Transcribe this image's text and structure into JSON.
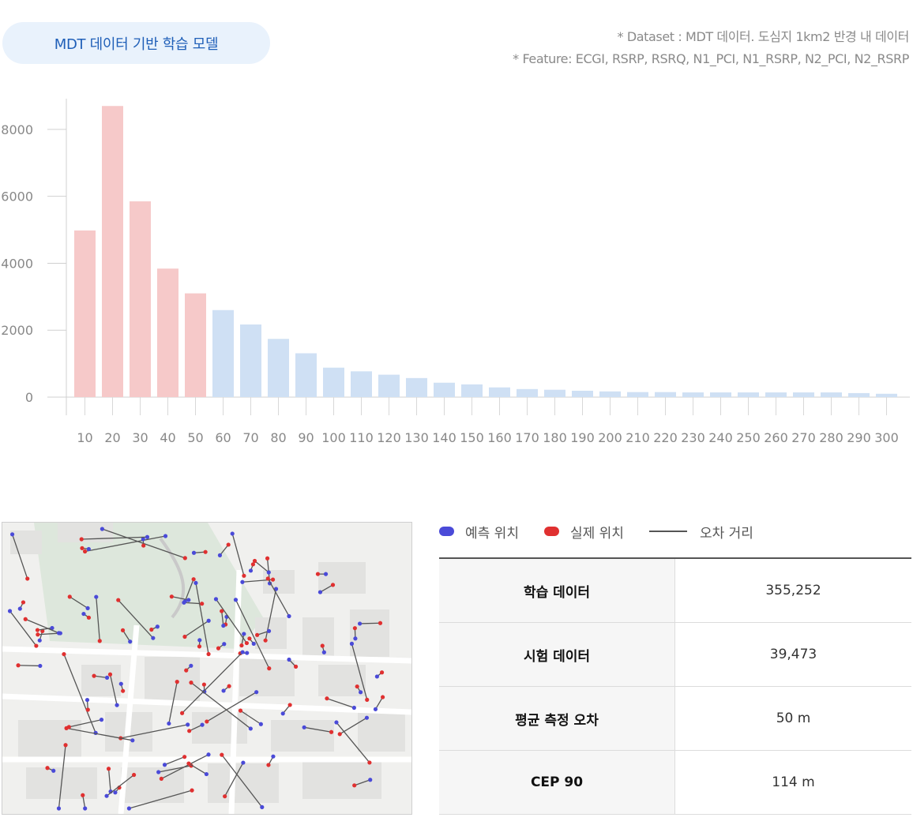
{
  "header": {
    "model_label": "MDT 데이터 기반 학습 모델",
    "dataset_note": "* Dataset :  MDT 데이터. 도심지 1km2 반경 내 데이터",
    "feature_note": "* Feature:  ECGI, RSRP, RSRQ, N1_PCI, N1_RSRP, N2_PCI, N2_RSRP"
  },
  "chart_data": {
    "type": "bar",
    "title": "",
    "xlabel": "",
    "ylabel": "",
    "ylim": [
      0,
      8800
    ],
    "yticks": [
      0,
      2000,
      4000,
      6000,
      8000
    ],
    "categories": [
      "10",
      "20",
      "30",
      "40",
      "50",
      "60",
      "70",
      "80",
      "90",
      "100",
      "110",
      "120",
      "130",
      "140",
      "150",
      "160",
      "170",
      "180",
      "190",
      "200",
      "210",
      "220",
      "230",
      "240",
      "250",
      "260",
      "270",
      "280",
      "290",
      "300"
    ],
    "values": [
      4980,
      8700,
      5850,
      3840,
      3100,
      2600,
      2170,
      1740,
      1310,
      880,
      770,
      670,
      570,
      430,
      380,
      290,
      240,
      220,
      190,
      170,
      150,
      150,
      140,
      140,
      140,
      140,
      140,
      140,
      120,
      100
    ],
    "highlight_count": 5,
    "colors": {
      "highlight": "#f6c9c9",
      "normal": "#cfe0f4"
    },
    "grid": false
  },
  "legend": {
    "predicted": "예측 위치",
    "actual": "실제 위치",
    "error": "오차 거리",
    "colors": {
      "predicted": "#4a4ad8",
      "actual": "#e03030",
      "error": "#555555"
    }
  },
  "stats": [
    {
      "label": "학습 데이터",
      "value": "355,252"
    },
    {
      "label": "시험 데이터",
      "value": "39,473"
    },
    {
      "label": "평균 측정 오차",
      "value": "50 m"
    },
    {
      "label": "CEP 90",
      "value": "114 m"
    }
  ]
}
